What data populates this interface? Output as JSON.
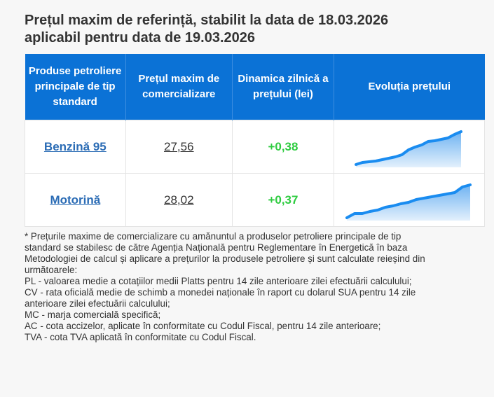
{
  "title_lines": [
    "Prețul maxim de referință, stabilit la data de 18.03.2026",
    "aplicabil pentru data de 19.03.2026"
  ],
  "table": {
    "headers": [
      "Produse petroliere principale de tip standard",
      "Prețul maxim de comercializare",
      "Dinamica zilnică a prețului (lei)",
      "Evoluția prețului"
    ],
    "rows": [
      {
        "product": "Benzină 95",
        "price": "27,56",
        "change": "+0,38",
        "trend": [
          7,
          10,
          11,
          12,
          14,
          16,
          18,
          21,
          28,
          32,
          35,
          40,
          41,
          43,
          45,
          50,
          54
        ]
      },
      {
        "product": "Motorină",
        "price": "28,02",
        "change": "+0,37",
        "trend": [
          0,
          6,
          6,
          9,
          11,
          15,
          17,
          20,
          22,
          26,
          28,
          30,
          32,
          34,
          36,
          44,
          47
        ]
      }
    ]
  },
  "footnote_lines": [
    "* Prețurile maxime de comercializare cu amănuntul a produselor petroliere principale de tip",
    "standard se stabilesc de către Agenția Națională pentru Reglementare în Energetică în baza",
    "Metodologiei de calcul și aplicare a prețurilor la produsele petroliere și sunt calculate reieșind din",
    "următoarele:",
    "PL - valoarea medie a cotațiilor medii Platts pentru 14 zile anterioare zilei efectuării calculului;",
    "CV - rata oficială medie de schimb a monedei naționale în raport cu dolarul SUA pentru 14 zile",
    "anterioare zilei efectuării calculului;",
    "MC - marja comercială specifică;",
    "AC - cota accizelor, aplicate în conformitate cu Codul Fiscal, pentru 14 zile anterioare;",
    "TVA - cota TVA aplicată în conformitate cu Codul Fiscal."
  ]
}
